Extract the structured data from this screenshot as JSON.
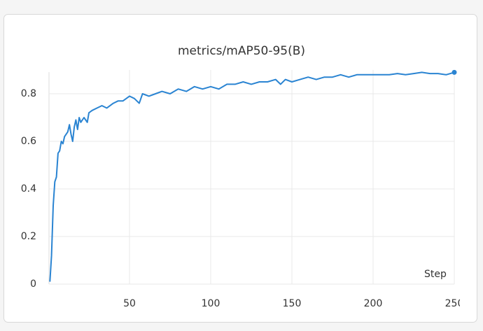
{
  "chart_data": {
    "type": "line",
    "title": "metrics/mAP50-95(B)",
    "x_label": "Step",
    "color": "#2a84d2",
    "x": [
      1,
      2,
      3,
      4,
      5,
      6,
      7,
      8,
      9,
      10,
      12,
      13,
      14,
      15,
      16,
      17,
      18,
      19,
      20,
      22,
      24,
      25,
      27,
      30,
      33,
      36,
      40,
      43,
      46,
      50,
      53,
      56,
      58,
      62,
      66,
      70,
      75,
      80,
      85,
      90,
      95,
      100,
      105,
      110,
      115,
      120,
      125,
      130,
      135,
      140,
      143,
      146,
      150,
      155,
      160,
      165,
      170,
      175,
      180,
      185,
      190,
      195,
      200,
      205,
      210,
      215,
      220,
      225,
      230,
      235,
      240,
      245,
      250
    ],
    "values": [
      0.01,
      0.12,
      0.33,
      0.43,
      0.45,
      0.55,
      0.56,
      0.6,
      0.59,
      0.62,
      0.64,
      0.67,
      0.63,
      0.6,
      0.66,
      0.69,
      0.65,
      0.7,
      0.68,
      0.7,
      0.68,
      0.72,
      0.73,
      0.74,
      0.75,
      0.74,
      0.76,
      0.77,
      0.77,
      0.79,
      0.78,
      0.76,
      0.8,
      0.79,
      0.8,
      0.81,
      0.8,
      0.82,
      0.81,
      0.83,
      0.82,
      0.83,
      0.82,
      0.84,
      0.84,
      0.85,
      0.84,
      0.85,
      0.85,
      0.86,
      0.84,
      0.86,
      0.85,
      0.86,
      0.87,
      0.86,
      0.87,
      0.87,
      0.88,
      0.87,
      0.88,
      0.88,
      0.88,
      0.88,
      0.88,
      0.885,
      0.88,
      0.885,
      0.89,
      0.885,
      0.885,
      0.88,
      0.89
    ],
    "xlim": [
      0,
      250
    ],
    "ylim": [
      0,
      0.9
    ],
    "xticks": [
      50,
      100,
      150,
      200,
      250
    ],
    "yticks": [
      0,
      0.2,
      0.4,
      0.6,
      0.8
    ],
    "grid": true
  }
}
